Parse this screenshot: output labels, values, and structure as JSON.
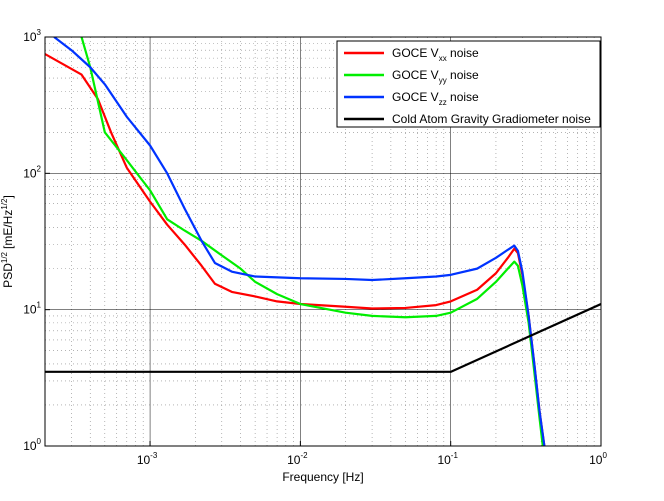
{
  "chart_data": {
    "type": "line",
    "title": "",
    "xlabel": "Frequency [Hz]",
    "ylabel_text": "PSD",
    "ylabel_sup": "1/2",
    "ylabel_units": "[mE/Hz",
    "ylabel_units_sup": "1/2",
    "ylabel_close": "]",
    "x_scale": "log",
    "y_scale": "log",
    "xlim": [
      0.0002,
      1
    ],
    "ylim": [
      1,
      1000
    ],
    "grid": true,
    "legend_location": "top-right",
    "x_ticks": [
      {
        "base": "10",
        "exp": "-3",
        "value": 0.001
      },
      {
        "base": "10",
        "exp": "-2",
        "value": 0.01
      },
      {
        "base": "10",
        "exp": "-1",
        "value": 0.1
      },
      {
        "base": "10",
        "exp": "0",
        "value": 1
      }
    ],
    "y_ticks": [
      {
        "base": "10",
        "exp": "0",
        "value": 1
      },
      {
        "base": "10",
        "exp": "1",
        "value": 10
      },
      {
        "base": "10",
        "exp": "2",
        "value": 100
      },
      {
        "base": "10",
        "exp": "3",
        "value": 1000
      }
    ],
    "series": [
      {
        "name": "GOCE V_xx noise",
        "legend_prefix": "GOCE V",
        "legend_sub": "xx",
        "legend_suffix": " noise",
        "color": "#ff0000",
        "points": [
          [
            0.0002,
            750
          ],
          [
            0.00035,
            530
          ],
          [
            0.00045,
            350
          ],
          [
            0.00055,
            200
          ],
          [
            0.0007,
            110
          ],
          [
            0.001,
            62
          ],
          [
            0.0013,
            42
          ],
          [
            0.0017,
            30
          ],
          [
            0.0022,
            21
          ],
          [
            0.0027,
            15.5
          ],
          [
            0.0035,
            13.5
          ],
          [
            0.005,
            12.5
          ],
          [
            0.007,
            11.5
          ],
          [
            0.01,
            11
          ],
          [
            0.02,
            10.5
          ],
          [
            0.03,
            10.2
          ],
          [
            0.05,
            10.3
          ],
          [
            0.08,
            10.8
          ],
          [
            0.1,
            11.5
          ],
          [
            0.15,
            14
          ],
          [
            0.2,
            18.5
          ],
          [
            0.24,
            24
          ],
          [
            0.265,
            28
          ],
          [
            0.28,
            26
          ],
          [
            0.3,
            18
          ],
          [
            0.33,
            9
          ],
          [
            0.36,
            4
          ],
          [
            0.39,
            1.8
          ],
          [
            0.42,
            1
          ]
        ]
      },
      {
        "name": "GOCE V_yy noise",
        "legend_prefix": "GOCE V",
        "legend_sub": "yy",
        "legend_suffix": " noise",
        "color": "#00ee00",
        "points": [
          [
            0.00035,
            1000
          ],
          [
            0.0004,
            600
          ],
          [
            0.0005,
            200
          ],
          [
            0.0007,
            125
          ],
          [
            0.001,
            75
          ],
          [
            0.0013,
            46
          ],
          [
            0.0017,
            38
          ],
          [
            0.0022,
            32
          ],
          [
            0.003,
            25
          ],
          [
            0.004,
            20
          ],
          [
            0.005,
            16
          ],
          [
            0.007,
            13
          ],
          [
            0.01,
            11
          ],
          [
            0.02,
            9.5
          ],
          [
            0.03,
            9
          ],
          [
            0.05,
            8.8
          ],
          [
            0.08,
            9
          ],
          [
            0.1,
            9.5
          ],
          [
            0.15,
            12
          ],
          [
            0.2,
            16
          ],
          [
            0.24,
            20
          ],
          [
            0.265,
            22.5
          ],
          [
            0.28,
            21
          ],
          [
            0.3,
            15
          ],
          [
            0.33,
            8
          ],
          [
            0.36,
            3.5
          ],
          [
            0.39,
            1.6
          ],
          [
            0.41,
            1
          ]
        ]
      },
      {
        "name": "GOCE V_zz noise",
        "legend_prefix": "GOCE V",
        "legend_sub": "zz",
        "legend_suffix": " noise",
        "color": "#0033ff",
        "points": [
          [
            0.00023,
            1000
          ],
          [
            0.0003,
            800
          ],
          [
            0.0004,
            600
          ],
          [
            0.0005,
            450
          ],
          [
            0.0007,
            260
          ],
          [
            0.001,
            160
          ],
          [
            0.0013,
            100
          ],
          [
            0.0017,
            55
          ],
          [
            0.0022,
            32
          ],
          [
            0.0027,
            22
          ],
          [
            0.0035,
            19
          ],
          [
            0.005,
            17.5
          ],
          [
            0.01,
            17
          ],
          [
            0.02,
            16.8
          ],
          [
            0.03,
            16.5
          ],
          [
            0.05,
            17
          ],
          [
            0.08,
            17.5
          ],
          [
            0.1,
            18
          ],
          [
            0.15,
            20
          ],
          [
            0.2,
            24
          ],
          [
            0.24,
            27.5
          ],
          [
            0.265,
            29.5
          ],
          [
            0.28,
            27
          ],
          [
            0.3,
            19
          ],
          [
            0.33,
            9
          ],
          [
            0.36,
            4
          ],
          [
            0.39,
            1.8
          ],
          [
            0.42,
            1
          ]
        ]
      },
      {
        "name": "Cold Atom Gravity Gradiometer noise",
        "legend_prefix": "Cold Atom Gravity Gradiometer noise",
        "legend_sub": "",
        "legend_suffix": "",
        "color": "#000000",
        "points": [
          [
            0.0002,
            3.5
          ],
          [
            0.1,
            3.5
          ],
          [
            1,
            11
          ]
        ]
      }
    ]
  }
}
